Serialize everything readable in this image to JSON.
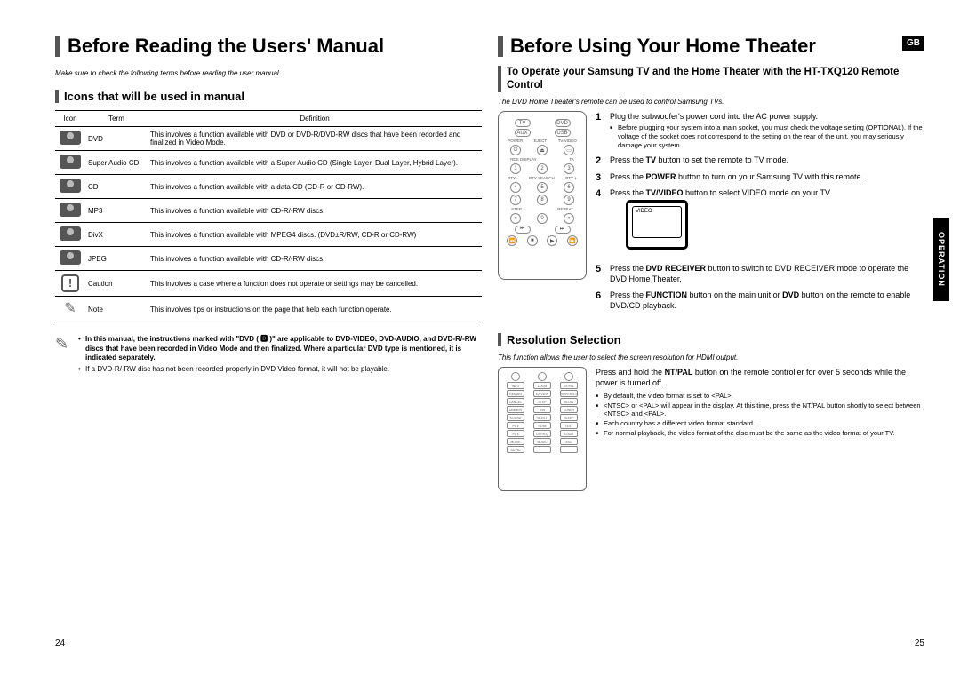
{
  "left": {
    "heading": "Before Reading the Users' Manual",
    "intro": "Make sure to check the following terms before reading the user manual.",
    "subheading": "Icons that will be used in manual",
    "table": {
      "headers": [
        "Icon",
        "Term",
        "Definition"
      ],
      "rows": [
        {
          "icon": "disc",
          "icon_label": "DVD",
          "term": "DVD",
          "def": "This involves a function available with DVD or DVD-R/DVD-RW discs that have been recorded and finalized in Video Mode."
        },
        {
          "icon": "disc",
          "icon_label": "Super Audio CD",
          "term": "Super Audio CD",
          "def": "This involves a function available with a Super Audio CD (Single Layer, Dual Layer, Hybrid Layer)."
        },
        {
          "icon": "disc",
          "icon_label": "CD",
          "term": "CD",
          "def": "This involves a function available with a data CD (CD-R or CD-RW)."
        },
        {
          "icon": "disc",
          "icon_label": "MP3",
          "term": "MP3",
          "def": "This involves a function available with CD-R/-RW discs."
        },
        {
          "icon": "disc",
          "icon_label": "DivX",
          "term": "DivX",
          "def": "This involves a function available with MPEG4 discs. (DVD±R/RW, CD-R or CD-RW)"
        },
        {
          "icon": "disc",
          "icon_label": "JPEG",
          "term": "JPEG",
          "def": "This involves a function available with CD-R/-RW discs."
        },
        {
          "icon": "caution",
          "icon_label": "!",
          "term": "Caution",
          "def": "This involves a case where a function does not operate or settings may be cancelled."
        },
        {
          "icon": "note",
          "icon_label": "✎",
          "term": "Note",
          "def": "This involves tips or instructions on the page that help each function operate."
        }
      ]
    },
    "notes": [
      "In this manual, the instructions marked with \"DVD ( 🅳 )\" are applicable to DVD-VIDEO, DVD-AUDIO, and DVD-R/-RW discs that have been recorded in Video Mode and then finalized. Where a particular DVD type is mentioned, it is indicated separately.",
      "If a DVD-R/-RW disc has not been recorded properly in DVD Video format, it will not be playable."
    ],
    "page_num": "24"
  },
  "right": {
    "heading": "Before Using Your Home Theater",
    "gb": "GB",
    "side_tab": "OPERATION",
    "subheading1": "To Operate your Samsung TV and the Home Theater with the HT-TXQ120 Remote Control",
    "intro1": "The DVD Home Theater's remote can be used to control Samsung TVs.",
    "steps": [
      {
        "text": "Plug the subwoofer's power cord into the AC power supply.",
        "sub": [
          "Before plugging your system into a main socket, you must check the voltage setting (OPTIONAL). If the voltage of the socket does not correspond to the setting on the rear of the unit, you may seriously damage your system."
        ]
      },
      {
        "text_before": "Press the ",
        "bold": "TV",
        "text_after": " button to set the remote to TV mode."
      },
      {
        "text_before": "Press the ",
        "bold": "POWER",
        "text_after": " button to turn on your Samsung TV with this remote."
      },
      {
        "text_before": "Press the ",
        "bold": "TV/VIDEO",
        "text_after": " button to select VIDEO mode on your TV.",
        "tv": true,
        "tv_label": "VIDEO"
      },
      {
        "text_before": "Press the ",
        "bold": "DVD RECEIVER",
        "text_after": " button to switch to DVD RECEIVER mode to operate the DVD Home Theater."
      },
      {
        "text_before": "Press the ",
        "bold": "FUNCTION",
        "text_mid": " button on the main unit or ",
        "bold2": "DVD",
        "text_after": " button on the remote to enable DVD/CD playback."
      }
    ],
    "subheading2": "Resolution Selection",
    "intro2": "This function allows the user to select the screen resolution for HDMI output.",
    "res_text_before": "Press and hold the ",
    "res_bold": "NT/PAL",
    "res_text_after": " button on the remote controller for over 5 seconds while the power is turned off.",
    "res_bullets": [
      "By default, the video format is set to <PAL>.",
      "<NTSC> or <PAL> will appear in the display. At this time, press the NT/PAL button shortly to select between <NTSC> and <PAL>.",
      "Each country has a different video format standard.",
      "For normal playback, the video format of the disc must be the same as the video format of your TV."
    ],
    "remote_top_labels": {
      "tv": "TV",
      "dvd": "DVD",
      "aux": "AUX",
      "usb": "USB",
      "power": "POWER",
      "eject": "EJECT",
      "tvvideo": "TV/VIDEO",
      "rds": "RDS DISPLAY",
      "ta": "TA",
      "pty_m": "PTY -",
      "pty_s": "PTY SEARCH",
      "pty_p": "PTY +",
      "step": "STEP",
      "repeat": "REPEAT"
    },
    "remote_bottom_labels": [
      "INFO",
      "ZOOM",
      "NT/PAL",
      "REMAIN",
      "EZ VIEW",
      "SUPER 5.1",
      "CANCEL",
      "STEP",
      "SLOW",
      "DIMMER",
      "S/W LEVEL",
      "TUNER MEMORY",
      "SOUND EDIT",
      "MO/ST",
      "SLEEP",
      "PL II MODE",
      "HDMI AUDIO",
      "TEST TONE",
      "PL II EFFECT",
      "DSP/EQ",
      "LOGO",
      "MOVIE",
      "MUSIC",
      "ASC",
      "SD HD"
    ],
    "page_num": "25"
  }
}
